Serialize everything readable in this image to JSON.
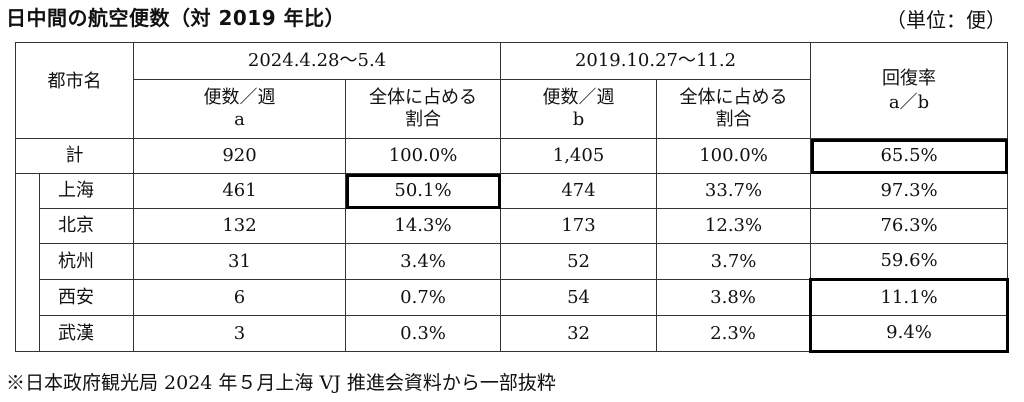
{
  "title": "日中間の航空便数（対 2019 年比）",
  "unit": "（単位：便）",
  "headers": {
    "city": "都市名",
    "period_2024": "2024.4.28～5.4",
    "period_2019": "2019.10.27～11.2",
    "flights_a": "便数／週\na",
    "share_a": "全体に占める\n割合",
    "flights_b": "便数／週\nb",
    "share_b": "全体に占める\n割合",
    "recovery": "回復率\na／b"
  },
  "rows": [
    {
      "city": "計",
      "a": "920",
      "share_a": "100.0%",
      "b": "1,405",
      "share_b": "100.0%",
      "rate": "65.5%"
    },
    {
      "city": "上海",
      "a": "461",
      "share_a": "50.1%",
      "b": "474",
      "share_b": "33.7%",
      "rate": "97.3%"
    },
    {
      "city": "北京",
      "a": "132",
      "share_a": "14.3%",
      "b": "173",
      "share_b": "12.3%",
      "rate": "76.3%"
    },
    {
      "city": "杭州",
      "a": "31",
      "share_a": "3.4%",
      "b": "52",
      "share_b": "3.7%",
      "rate": "59.6%"
    },
    {
      "city": "西安",
      "a": "6",
      "share_a": "0.7%",
      "b": "54",
      "share_b": "3.8%",
      "rate": "11.1%"
    },
    {
      "city": "武漢",
      "a": "3",
      "share_a": "0.3%",
      "b": "32",
      "share_b": "2.3%",
      "rate": "9.4%"
    }
  ],
  "note": "※日本政府観光局 2024 年５月上海 VJ 推進会資料から一部抜粋"
}
